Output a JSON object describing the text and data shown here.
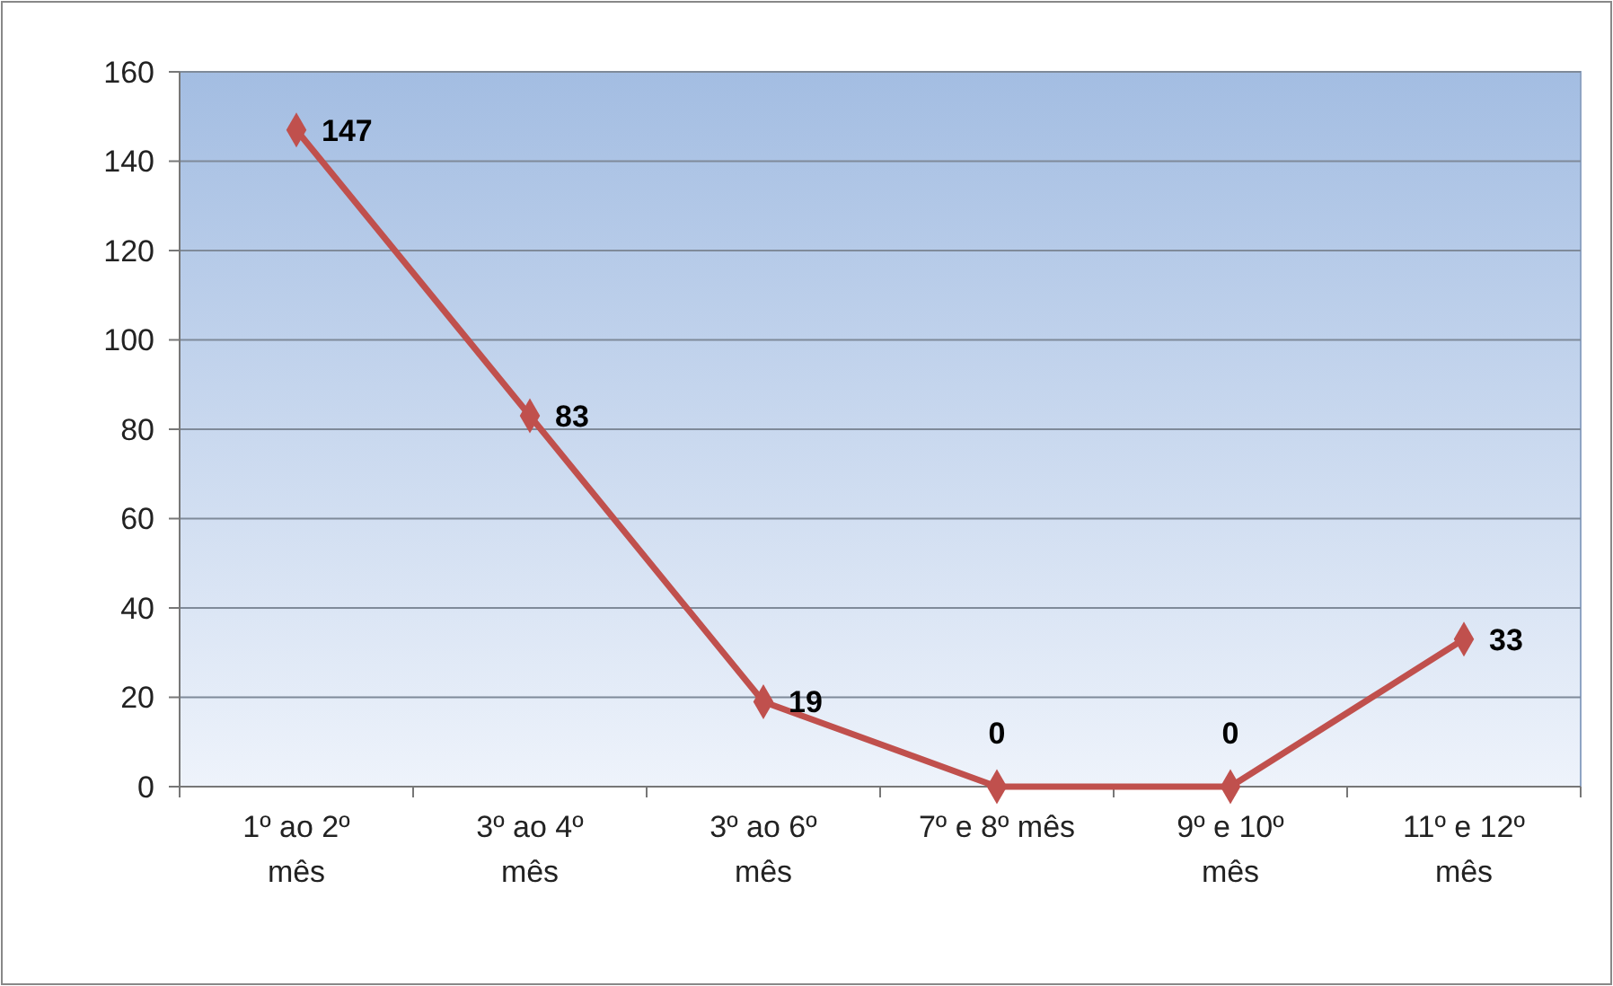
{
  "chart_data": {
    "type": "line",
    "categories": [
      "1º ao 2º mês",
      "3º ao 4º mês",
      "3º ao 6º mês",
      "7º e 8º mês",
      "9º e 10º mês",
      "11º e 12º mês"
    ],
    "series": [
      {
        "color": "#c0504d",
        "values": [
          147,
          83,
          19,
          0,
          0,
          33
        ]
      }
    ],
    "ylim": [
      0,
      160
    ],
    "yticks": [
      0,
      20,
      40,
      60,
      80,
      100,
      120,
      140,
      160
    ],
    "grid": "y",
    "marker": "diamond",
    "line_style": "solid",
    "data_labels": true
  }
}
